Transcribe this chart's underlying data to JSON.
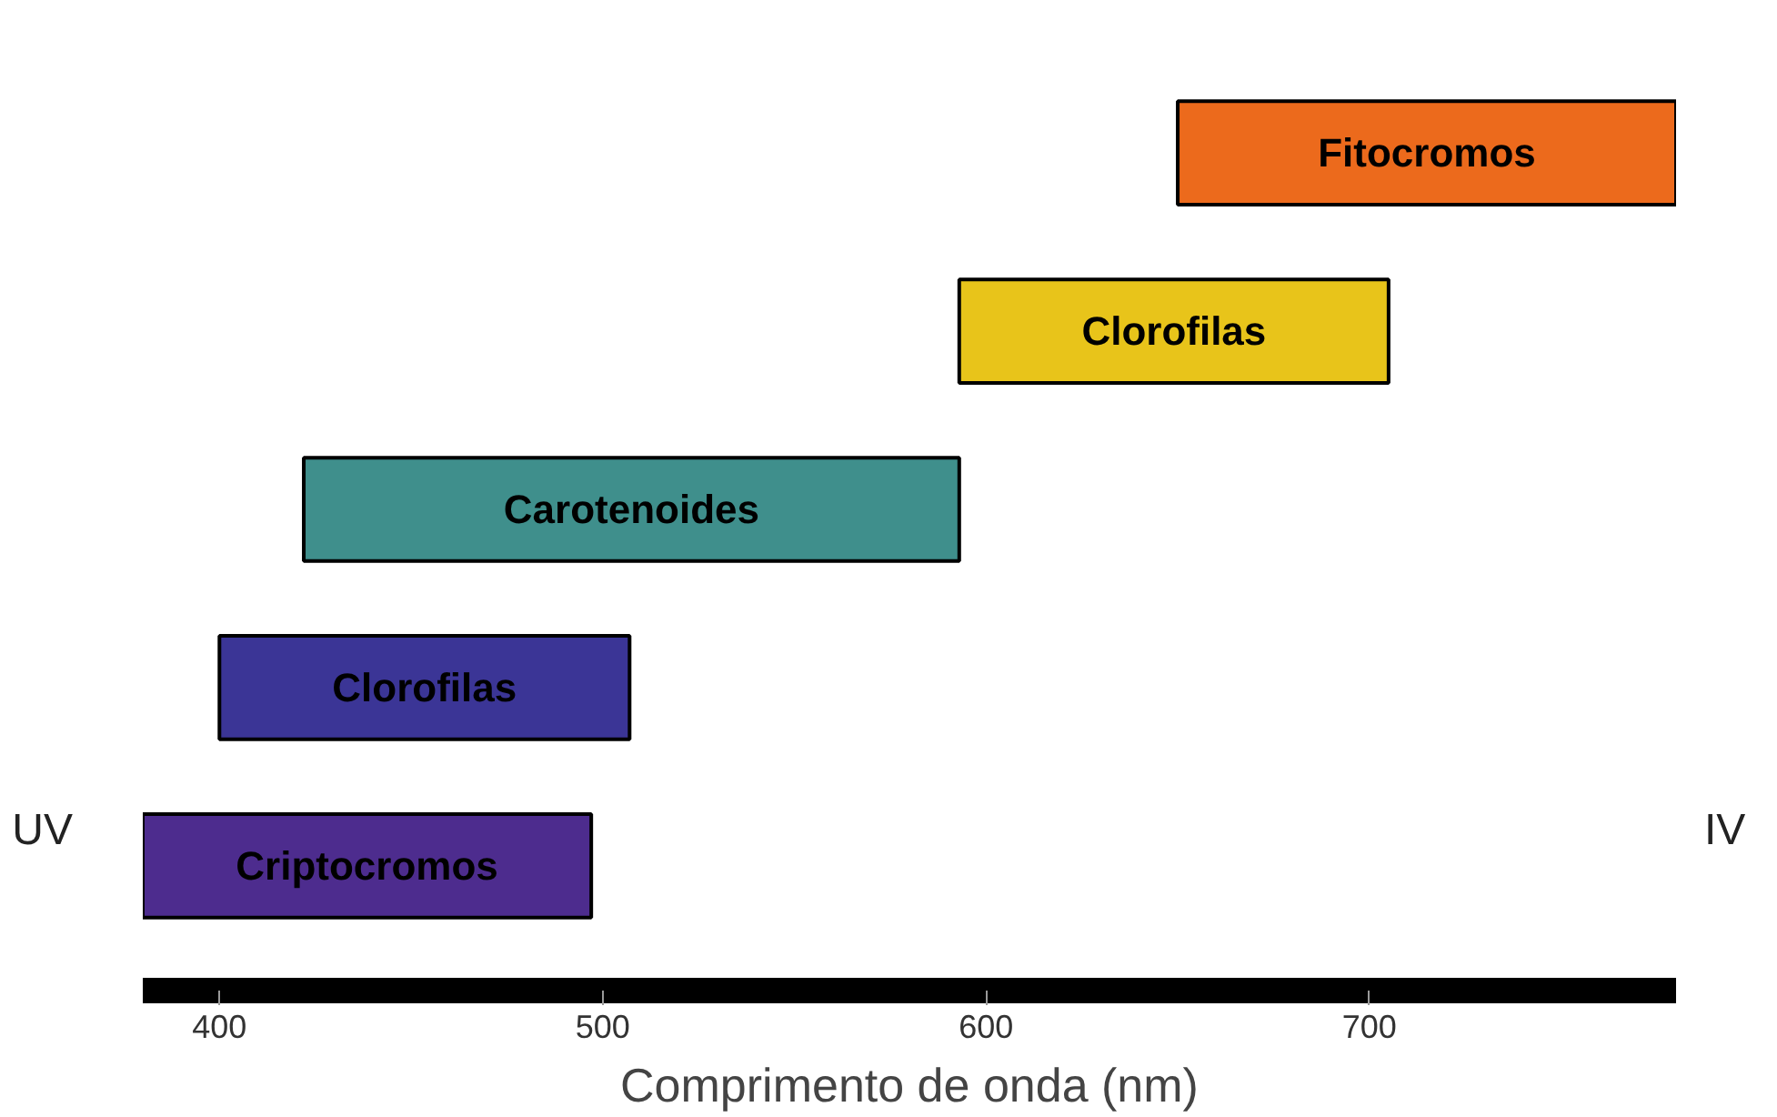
{
  "chart_data": {
    "type": "bar",
    "orientation": "horizontal",
    "xlabel": "Comprimento de onda (nm)",
    "categories": [
      null,
      null,
      null,
      null,
      null
    ],
    "value_labels": [
      "Fitocromos",
      "Clorofilas",
      "Carotenoides",
      "Clorofilas",
      "Criptocromos"
    ],
    "base": [
      650,
      593,
      422,
      400,
      380
    ],
    "values": [
      130,
      112,
      171,
      107,
      117
    ],
    "colors": [
      "#ec6a1c",
      "#e8c41a",
      "#3f8f8c",
      "#3b3596",
      "#4d2c8e"
    ],
    "xlim": [
      380,
      780
    ],
    "xticks": [
      400,
      500,
      600,
      700
    ],
    "tick_labels": "x",
    "annotations": [
      "UV",
      "IV"
    ]
  }
}
